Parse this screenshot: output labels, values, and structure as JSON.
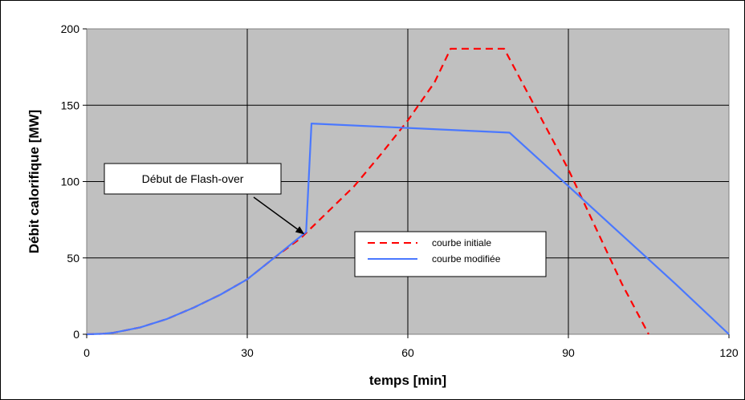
{
  "chart_data": {
    "type": "line",
    "title": "",
    "xlabel": "temps [min]",
    "ylabel": "Débit calorifique [MW]",
    "xlim": [
      0,
      120
    ],
    "ylim": [
      0,
      200
    ],
    "x_ticks": [
      0,
      30,
      60,
      90,
      120
    ],
    "y_ticks": [
      0,
      50,
      100,
      150,
      200
    ],
    "grid": true,
    "legend_position": "center-right",
    "series": [
      {
        "name": "courbe initiale",
        "color": "#ff0000",
        "style": "dashed",
        "points": [
          [
            0,
            0
          ],
          [
            3,
            0.3
          ],
          [
            5,
            1
          ],
          [
            10,
            4.5
          ],
          [
            15,
            10
          ],
          [
            20,
            17.5
          ],
          [
            25,
            26
          ],
          [
            30,
            36
          ],
          [
            35,
            50
          ],
          [
            40,
            63
          ],
          [
            45,
            80
          ],
          [
            50,
            97
          ],
          [
            55,
            118
          ],
          [
            60,
            140
          ],
          [
            65,
            165
          ],
          [
            68,
            187
          ],
          [
            78,
            187
          ],
          [
            90,
            108
          ],
          [
            100,
            33
          ],
          [
            105,
            0
          ]
        ]
      },
      {
        "name": "courbe modifiée",
        "color": "#4a78ff",
        "style": "solid",
        "points": [
          [
            0,
            0
          ],
          [
            3,
            0.3
          ],
          [
            5,
            1
          ],
          [
            10,
            4.5
          ],
          [
            15,
            10
          ],
          [
            20,
            17.5
          ],
          [
            25,
            26
          ],
          [
            30,
            36
          ],
          [
            35,
            50
          ],
          [
            41,
            67
          ],
          [
            42,
            138
          ],
          [
            79,
            132
          ],
          [
            90,
            97
          ],
          [
            100,
            65
          ],
          [
            110,
            33
          ],
          [
            120,
            0
          ]
        ]
      }
    ],
    "annotations": [
      {
        "text": "Début de Flash-over",
        "target": [
          41,
          67
        ]
      }
    ]
  }
}
